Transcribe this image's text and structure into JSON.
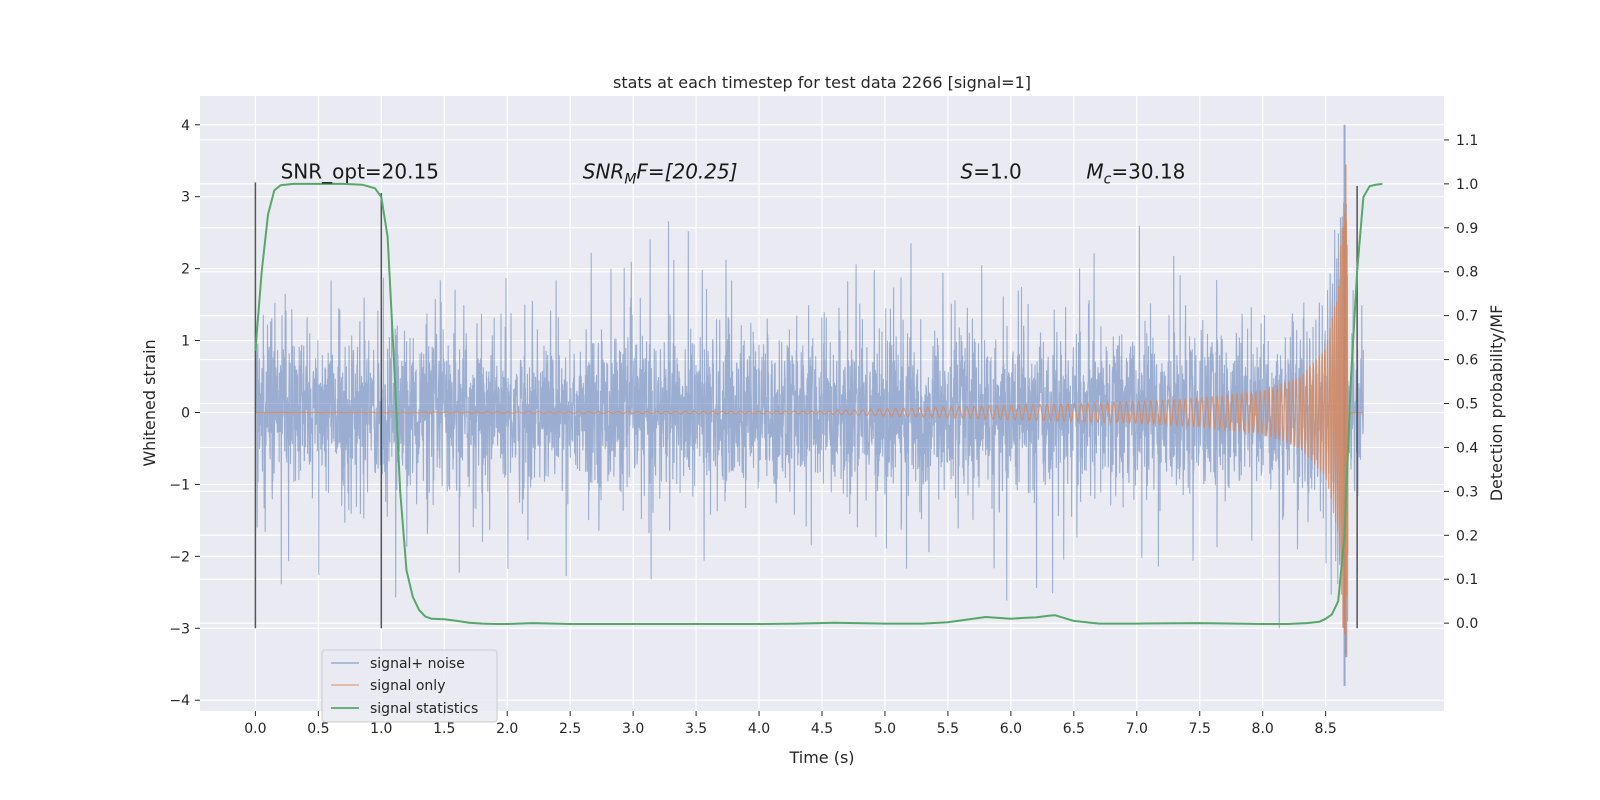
{
  "chart_data": {
    "type": "line",
    "title": "stats at each timestep for test data 2266 [signal=1]",
    "xlabel": "Time (s)",
    "ylabel": "Whitened strain",
    "ylabel_right": "Detection probability/MF",
    "xlim": [
      -0.44,
      9.44
    ],
    "ylim": [
      -4.15,
      4.4
    ],
    "ylim_right": [
      -0.2,
      1.2
    ],
    "x_ticks": [
      0.0,
      0.5,
      1.0,
      1.5,
      2.0,
      2.5,
      3.0,
      3.5,
      4.0,
      4.5,
      5.0,
      5.5,
      6.0,
      6.5,
      7.0,
      7.5,
      8.0,
      8.5
    ],
    "x_tick_labels": [
      "0.0",
      "0.5",
      "1.0",
      "1.5",
      "2.0",
      "2.5",
      "3.0",
      "3.5",
      "4.0",
      "4.5",
      "5.0",
      "5.5",
      "6.0",
      "6.5",
      "7.0",
      "7.5",
      "8.0",
      "8.5"
    ],
    "y_ticks": [
      -4,
      -3,
      -2,
      -1,
      0,
      1,
      2,
      3,
      4
    ],
    "y_tick_labels": [
      "−4",
      "−3",
      "−2",
      "−1",
      "0",
      "1",
      "2",
      "3",
      "4"
    ],
    "y_right_ticks": [
      0.0,
      0.1,
      0.2,
      0.3,
      0.4,
      0.5,
      0.6,
      0.7,
      0.8,
      0.9,
      1.0,
      1.1
    ],
    "y_right_tick_labels": [
      "0.0",
      "0.1",
      "0.2",
      "0.3",
      "0.4",
      "0.5",
      "0.6",
      "0.7",
      "0.8",
      "0.9",
      "1.0",
      "1.1"
    ],
    "grid": true,
    "legend_position": "lower-left",
    "series": [
      {
        "name": "signal+ noise",
        "color": "#4c72b0",
        "axis": "left",
        "x_range": [
          0.0,
          8.8
        ],
        "noise_band": [
          -1.1,
          1.3
        ],
        "max_peak": 4.0,
        "min_peak": -3.8,
        "peak_time": 8.65
      },
      {
        "name": "signal only",
        "color": "#dd8452",
        "axis": "left",
        "x_range": [
          0.0,
          8.8
        ],
        "envelope": [
          [
            0.0,
            0.0
          ],
          [
            4.5,
            0.02
          ],
          [
            5.0,
            0.05
          ],
          [
            6.0,
            0.1
          ],
          [
            7.0,
            0.15
          ],
          [
            7.5,
            0.2
          ],
          [
            8.0,
            0.3
          ],
          [
            8.3,
            0.5
          ],
          [
            8.5,
            0.9
          ],
          [
            8.6,
            1.7
          ],
          [
            8.65,
            3.4
          ],
          [
            8.67,
            2.5
          ],
          [
            8.7,
            0.0
          ]
        ],
        "peak_value": 3.45,
        "min_value": -3.4,
        "peak_time": 8.66
      },
      {
        "name": "signal statistics",
        "color": "#55a868",
        "axis": "right",
        "x": [
          0.0,
          0.05,
          0.1,
          0.15,
          0.2,
          0.3,
          0.5,
          0.7,
          0.85,
          0.95,
          1.0,
          1.05,
          1.1,
          1.15,
          1.2,
          1.25,
          1.3,
          1.35,
          1.4,
          1.5,
          1.6,
          1.7,
          1.8,
          1.9,
          2.0,
          2.2,
          2.5,
          3.0,
          3.5,
          4.0,
          4.3,
          4.6,
          5.0,
          5.3,
          5.5,
          5.7,
          5.8,
          5.9,
          6.0,
          6.1,
          6.2,
          6.3,
          6.35,
          6.5,
          6.7,
          7.0,
          7.5,
          8.0,
          8.2,
          8.35,
          8.45,
          8.5,
          8.55,
          8.6,
          8.65,
          8.7,
          8.75,
          8.8,
          8.85,
          8.9,
          8.95
        ],
        "y": [
          0.62,
          0.8,
          0.93,
          0.985,
          0.997,
          1.0,
          1.0,
          1.0,
          0.998,
          0.99,
          0.97,
          0.88,
          0.6,
          0.3,
          0.12,
          0.06,
          0.03,
          0.015,
          0.01,
          0.009,
          0.005,
          0.001,
          -0.001,
          -0.002,
          -0.002,
          0.0,
          -0.002,
          -0.002,
          -0.002,
          -0.002,
          -0.001,
          0.001,
          -0.001,
          -0.001,
          0.002,
          0.01,
          0.014,
          0.012,
          0.01,
          0.012,
          0.013,
          0.017,
          0.018,
          0.005,
          -0.001,
          -0.001,
          0.0,
          -0.002,
          -0.002,
          0.0,
          0.003,
          0.01,
          0.02,
          0.05,
          0.2,
          0.55,
          0.8,
          0.97,
          0.995,
          0.998,
          1.0
        ]
      }
    ],
    "vertical_markers": [
      {
        "x": 0.0,
        "ymin": -3.0,
        "ymax": 3.2
      },
      {
        "x": 1.0,
        "ymin": -3.0,
        "ymax": 3.05
      },
      {
        "x": 8.75,
        "ymin": -3.0,
        "ymax": 3.15
      }
    ],
    "annotations": [
      {
        "id": "snr-opt",
        "x": 0.2,
        "y": 3.25,
        "text": "SNR_opt=20.15",
        "italic": false
      },
      {
        "id": "snr-mf",
        "x": 2.6,
        "y": 3.25,
        "text": "SNR",
        "sub": "M",
        "tail": "F=[20.25]",
        "italic": true
      },
      {
        "id": "s",
        "x": 5.6,
        "y": 3.25,
        "text": "S",
        "tail": "=1.0",
        "italic": true
      },
      {
        "id": "mc",
        "x": 6.6,
        "y": 3.25,
        "text": "M",
        "sub": "c",
        "tail": "=30.18",
        "italic": true
      }
    ]
  }
}
